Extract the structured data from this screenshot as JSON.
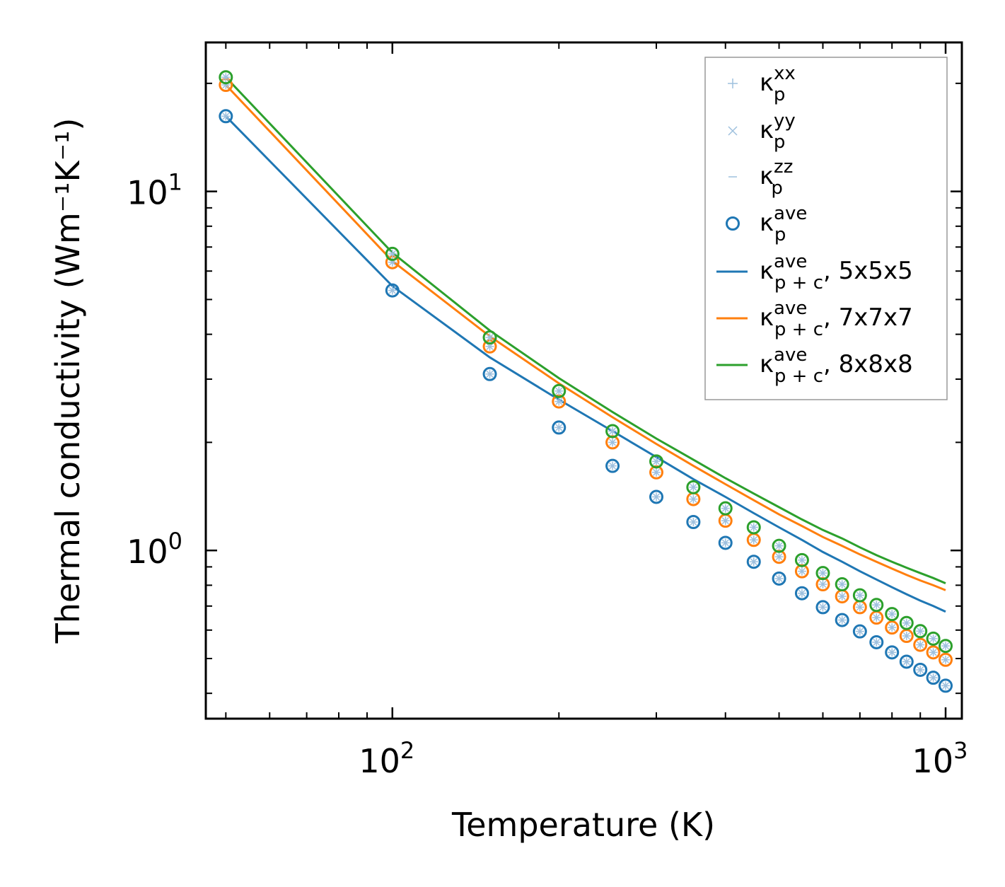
{
  "chart_data": {
    "type": "scatter",
    "title": "",
    "xlabel": "Temperature (K)",
    "ylabel": "Thermal conductivity (Wm⁻¹K⁻¹)",
    "xscale": "log",
    "yscale": "log",
    "xlim": [
      46,
      1070
    ],
    "ylim": [
      0.34,
      26
    ],
    "x_ticks": [
      {
        "base": "10",
        "exp": "2",
        "value": 100
      },
      {
        "base": "10",
        "exp": "3",
        "value": 1000
      }
    ],
    "y_ticks": [
      {
        "base": "10",
        "exp": "0",
        "value": 1
      },
      {
        "base": "10",
        "exp": "1",
        "value": 10
      }
    ],
    "legend_position": "top-right",
    "legend": [
      {
        "marker": "plus",
        "symbol": "κ",
        "sub": "p",
        "sup": "xx",
        "suffix": "",
        "color": "#9ec0de"
      },
      {
        "marker": "x",
        "symbol": "κ",
        "sub": "p",
        "sup": "yy",
        "suffix": "",
        "color": "#9ec0de"
      },
      {
        "marker": "hline",
        "symbol": "κ",
        "sub": "p",
        "sup": "zz",
        "suffix": "",
        "color": "#9ec0de"
      },
      {
        "marker": "circle",
        "symbol": "κ",
        "sub": "p",
        "sup": "ave",
        "suffix": "",
        "color": "#1f77b4"
      },
      {
        "marker": "line",
        "symbol": "κ",
        "sub": "p + c",
        "sup": "ave",
        "suffix": ", 5x5x5",
        "color": "#1f77b4"
      },
      {
        "marker": "line",
        "symbol": "κ",
        "sub": "p + c",
        "sup": "ave",
        "suffix": ", 7x7x7",
        "color": "#ff7f0e"
      },
      {
        "marker": "line",
        "symbol": "κ",
        "sub": "p + c",
        "sup": "ave",
        "suffix": ", 8x8x8",
        "color": "#2ca02c"
      }
    ],
    "x": [
      50,
      100,
      150,
      200,
      250,
      300,
      350,
      400,
      450,
      500,
      550,
      600,
      650,
      700,
      750,
      800,
      850,
      900,
      950,
      1000
    ],
    "series": [
      {
        "name": "κp_ave 5x5x5",
        "kind": "points",
        "color": "#1f77b4",
        "values": [
          16.2,
          5.3,
          3.1,
          2.2,
          1.72,
          1.41,
          1.2,
          1.05,
          0.93,
          0.835,
          0.76,
          0.695,
          0.64,
          0.595,
          0.555,
          0.52,
          0.49,
          0.465,
          0.442,
          0.42
        ]
      },
      {
        "name": "κp_ave 7x7x7",
        "kind": "points",
        "color": "#ff7f0e",
        "values": [
          19.8,
          6.35,
          3.7,
          2.6,
          2.0,
          1.65,
          1.39,
          1.21,
          1.07,
          0.96,
          0.875,
          0.805,
          0.745,
          0.695,
          0.65,
          0.61,
          0.578,
          0.546,
          0.52,
          0.496
        ]
      },
      {
        "name": "κp_ave 8x8x8",
        "kind": "points",
        "color": "#2ca02c",
        "values": [
          20.8,
          6.7,
          3.92,
          2.78,
          2.15,
          1.77,
          1.5,
          1.31,
          1.16,
          1.03,
          0.94,
          0.865,
          0.805,
          0.75,
          0.705,
          0.665,
          0.628,
          0.596,
          0.568,
          0.542
        ]
      },
      {
        "name": "κp+c_ave 5x5x5",
        "kind": "line",
        "color": "#1f77b4",
        "values": [
          16.2,
          5.45,
          3.45,
          2.63,
          2.15,
          1.82,
          1.58,
          1.41,
          1.27,
          1.16,
          1.07,
          0.99,
          0.93,
          0.875,
          0.83,
          0.79,
          0.755,
          0.725,
          0.7,
          0.675
        ]
      },
      {
        "name": "κp+c_ave 7x7x7",
        "kind": "line",
        "color": "#ff7f0e",
        "values": [
          19.8,
          6.4,
          3.95,
          2.92,
          2.35,
          1.98,
          1.72,
          1.53,
          1.38,
          1.26,
          1.17,
          1.09,
          1.03,
          0.975,
          0.93,
          0.89,
          0.855,
          0.825,
          0.8,
          0.775
        ]
      },
      {
        "name": "κp+c_ave 8x8x8",
        "kind": "line",
        "color": "#2ca02c",
        "values": [
          20.8,
          6.75,
          4.1,
          3.02,
          2.43,
          2.05,
          1.79,
          1.59,
          1.44,
          1.32,
          1.22,
          1.14,
          1.08,
          1.02,
          0.97,
          0.93,
          0.895,
          0.865,
          0.838,
          0.81
        ]
      }
    ]
  }
}
